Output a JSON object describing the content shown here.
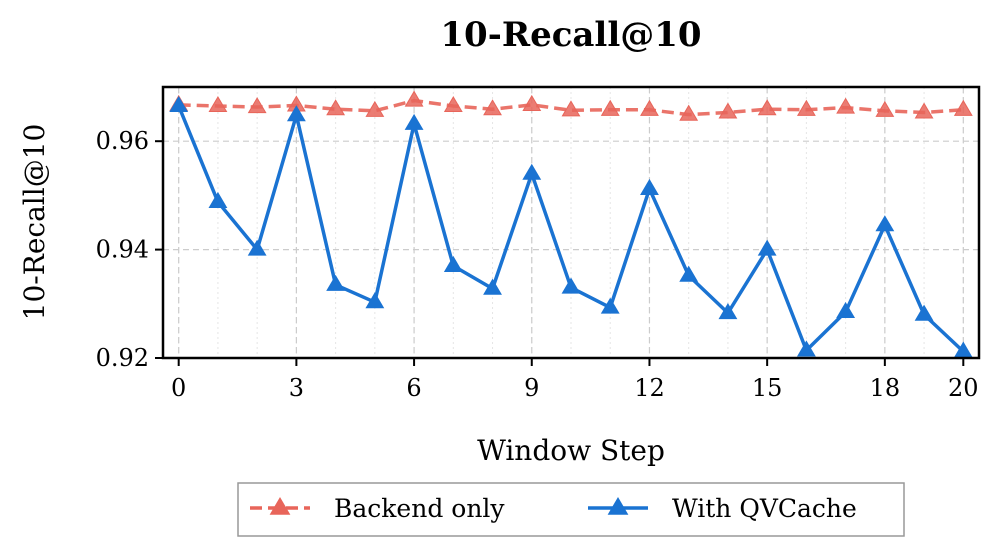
{
  "chart_data": {
    "type": "line",
    "title": "10-Recall@10",
    "xlabel": "Window Step",
    "ylabel": "10-Recall@10",
    "xlim": [
      -0.4,
      20.4
    ],
    "ylim": [
      0.92,
      0.97
    ],
    "x_ticks": [
      0,
      3,
      6,
      9,
      12,
      15,
      18,
      20
    ],
    "x_tick_labels": [
      "0",
      "3",
      "6",
      "9",
      "12",
      "15",
      "18",
      "20"
    ],
    "y_ticks": [
      0.92,
      0.94,
      0.96
    ],
    "y_tick_labels": [
      "0.92",
      "0.94",
      "0.96"
    ],
    "grid": true,
    "legend_position": "bottom-center",
    "x": [
      0,
      1,
      2,
      3,
      4,
      5,
      6,
      7,
      8,
      9,
      10,
      11,
      12,
      13,
      14,
      15,
      16,
      17,
      18,
      19,
      20
    ],
    "series": [
      {
        "name": "Backend only",
        "color": "#e8655a",
        "line_style": "dashed",
        "marker": "triangle",
        "values": [
          0.9667,
          0.9665,
          0.9663,
          0.9666,
          0.9659,
          0.9656,
          0.9675,
          0.9665,
          0.9659,
          0.9667,
          0.9657,
          0.9658,
          0.9658,
          0.9649,
          0.9653,
          0.9659,
          0.9658,
          0.9662,
          0.9656,
          0.9653,
          0.9658
        ]
      },
      {
        "name": "With QVCache",
        "color": "#1a73d2",
        "line_style": "solid",
        "marker": "triangle",
        "values": [
          0.9665,
          0.9488,
          0.94,
          0.9648,
          0.9335,
          0.9303,
          0.9632,
          0.937,
          0.9328,
          0.954,
          0.933,
          0.9293,
          0.9512,
          0.9352,
          0.9283,
          0.94,
          0.9214,
          0.9285,
          0.9445,
          0.928,
          0.9212
        ]
      }
    ]
  }
}
